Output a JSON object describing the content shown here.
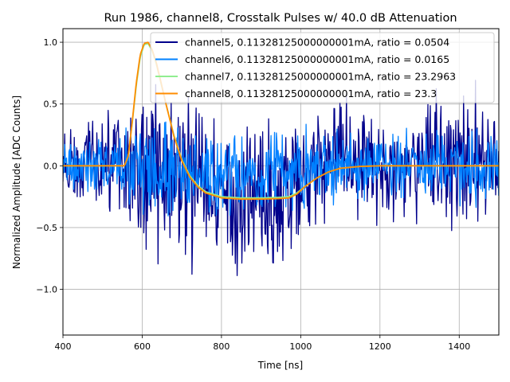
{
  "chart_data": {
    "type": "line",
    "title": "Run 1986, channel8, Crosstalk Pulses w/ 40.0 dB Attenuation",
    "xlabel": "Time [ns]",
    "ylabel": "Normalized Amplitude [ADC Counts]",
    "xlim": [
      400,
      1500
    ],
    "ylim": [
      -1.37,
      1.11
    ],
    "xticks": [
      400,
      600,
      800,
      1000,
      1200,
      1400
    ],
    "xtick_labels": [
      "400",
      "600",
      "800",
      "1000",
      "1200",
      "1400"
    ],
    "yticks": [
      -1.0,
      -0.5,
      0.0,
      0.5,
      1.0
    ],
    "ytick_labels": [
      "−1.0",
      "−0.5",
      "0.0",
      "0.5",
      "1.0"
    ],
    "grid": true,
    "legend_position": "top-right",
    "series": [
      {
        "name": "channel5, 0.11328125000000001mA, ratio = 0.0504",
        "color": "#00008b",
        "kind": "noise",
        "amplitude": 0.6,
        "envelope_x": [
          400,
          560,
          600,
          700,
          800,
          900,
          1000,
          1100,
          1200,
          1300,
          1400,
          1500
        ],
        "envelope_hi": [
          0.45,
          0.7,
          1.0,
          0.95,
          0.5,
          0.65,
          0.6,
          0.85,
          0.6,
          0.65,
          0.85,
          0.65
        ],
        "envelope_lo": [
          -0.45,
          -0.6,
          -1.0,
          -1.15,
          -1.0,
          -1.2,
          -0.9,
          -0.7,
          -0.6,
          -0.65,
          -0.7,
          -0.65
        ]
      },
      {
        "name": "channel6, 0.11328125000000001mA, ratio = 0.0165",
        "color": "#0080ff",
        "kind": "noise",
        "envelope_x": [
          400,
          560,
          600,
          700,
          800,
          900,
          1000,
          1100,
          1200,
          1300,
          1400,
          1500
        ],
        "envelope_hi": [
          0.3,
          0.4,
          0.55,
          0.45,
          0.35,
          0.35,
          0.4,
          0.4,
          0.35,
          0.35,
          0.4,
          0.35
        ],
        "envelope_lo": [
          -0.3,
          -0.4,
          -0.6,
          -0.55,
          -0.5,
          -0.55,
          -0.45,
          -0.4,
          -0.35,
          -0.35,
          -0.4,
          -0.35
        ]
      },
      {
        "name": "channel7, 0.11328125000000001mA, ratio = 23.2963",
        "color": "#90ee90",
        "kind": "pulse",
        "x": [
          400,
          555,
          565,
          575,
          585,
          595,
          605,
          615,
          625,
          635,
          645,
          660,
          680,
          700,
          720,
          740,
          760,
          800,
          850,
          900,
          950,
          970,
          990,
          1010,
          1040,
          1070,
          1100,
          1150,
          1200,
          1300,
          1400,
          1500
        ],
        "y": [
          0.0,
          0.0,
          0.08,
          0.35,
          0.65,
          0.88,
          0.98,
          0.99,
          0.93,
          0.83,
          0.7,
          0.5,
          0.25,
          0.05,
          -0.08,
          -0.16,
          -0.21,
          -0.25,
          -0.26,
          -0.26,
          -0.255,
          -0.25,
          -0.22,
          -0.17,
          -0.1,
          -0.05,
          -0.02,
          -0.005,
          0.0,
          0.0,
          0.0,
          0.0
        ]
      },
      {
        "name": "channel8, 0.11328125000000001mA, ratio = 23.3",
        "color": "#ff8c00",
        "kind": "pulse",
        "x": [
          400,
          555,
          565,
          575,
          585,
          595,
          605,
          615,
          625,
          635,
          645,
          660,
          680,
          700,
          720,
          740,
          760,
          800,
          850,
          900,
          950,
          970,
          990,
          1010,
          1040,
          1070,
          1100,
          1150,
          1200,
          1300,
          1400,
          1500
        ],
        "y": [
          0.0,
          0.0,
          0.08,
          0.36,
          0.67,
          0.9,
          0.99,
          1.0,
          0.94,
          0.84,
          0.71,
          0.5,
          0.24,
          0.04,
          -0.09,
          -0.17,
          -0.22,
          -0.26,
          -0.27,
          -0.27,
          -0.265,
          -0.26,
          -0.23,
          -0.17,
          -0.1,
          -0.05,
          -0.02,
          -0.005,
          0.0,
          0.0,
          0.0,
          0.0
        ]
      }
    ]
  }
}
